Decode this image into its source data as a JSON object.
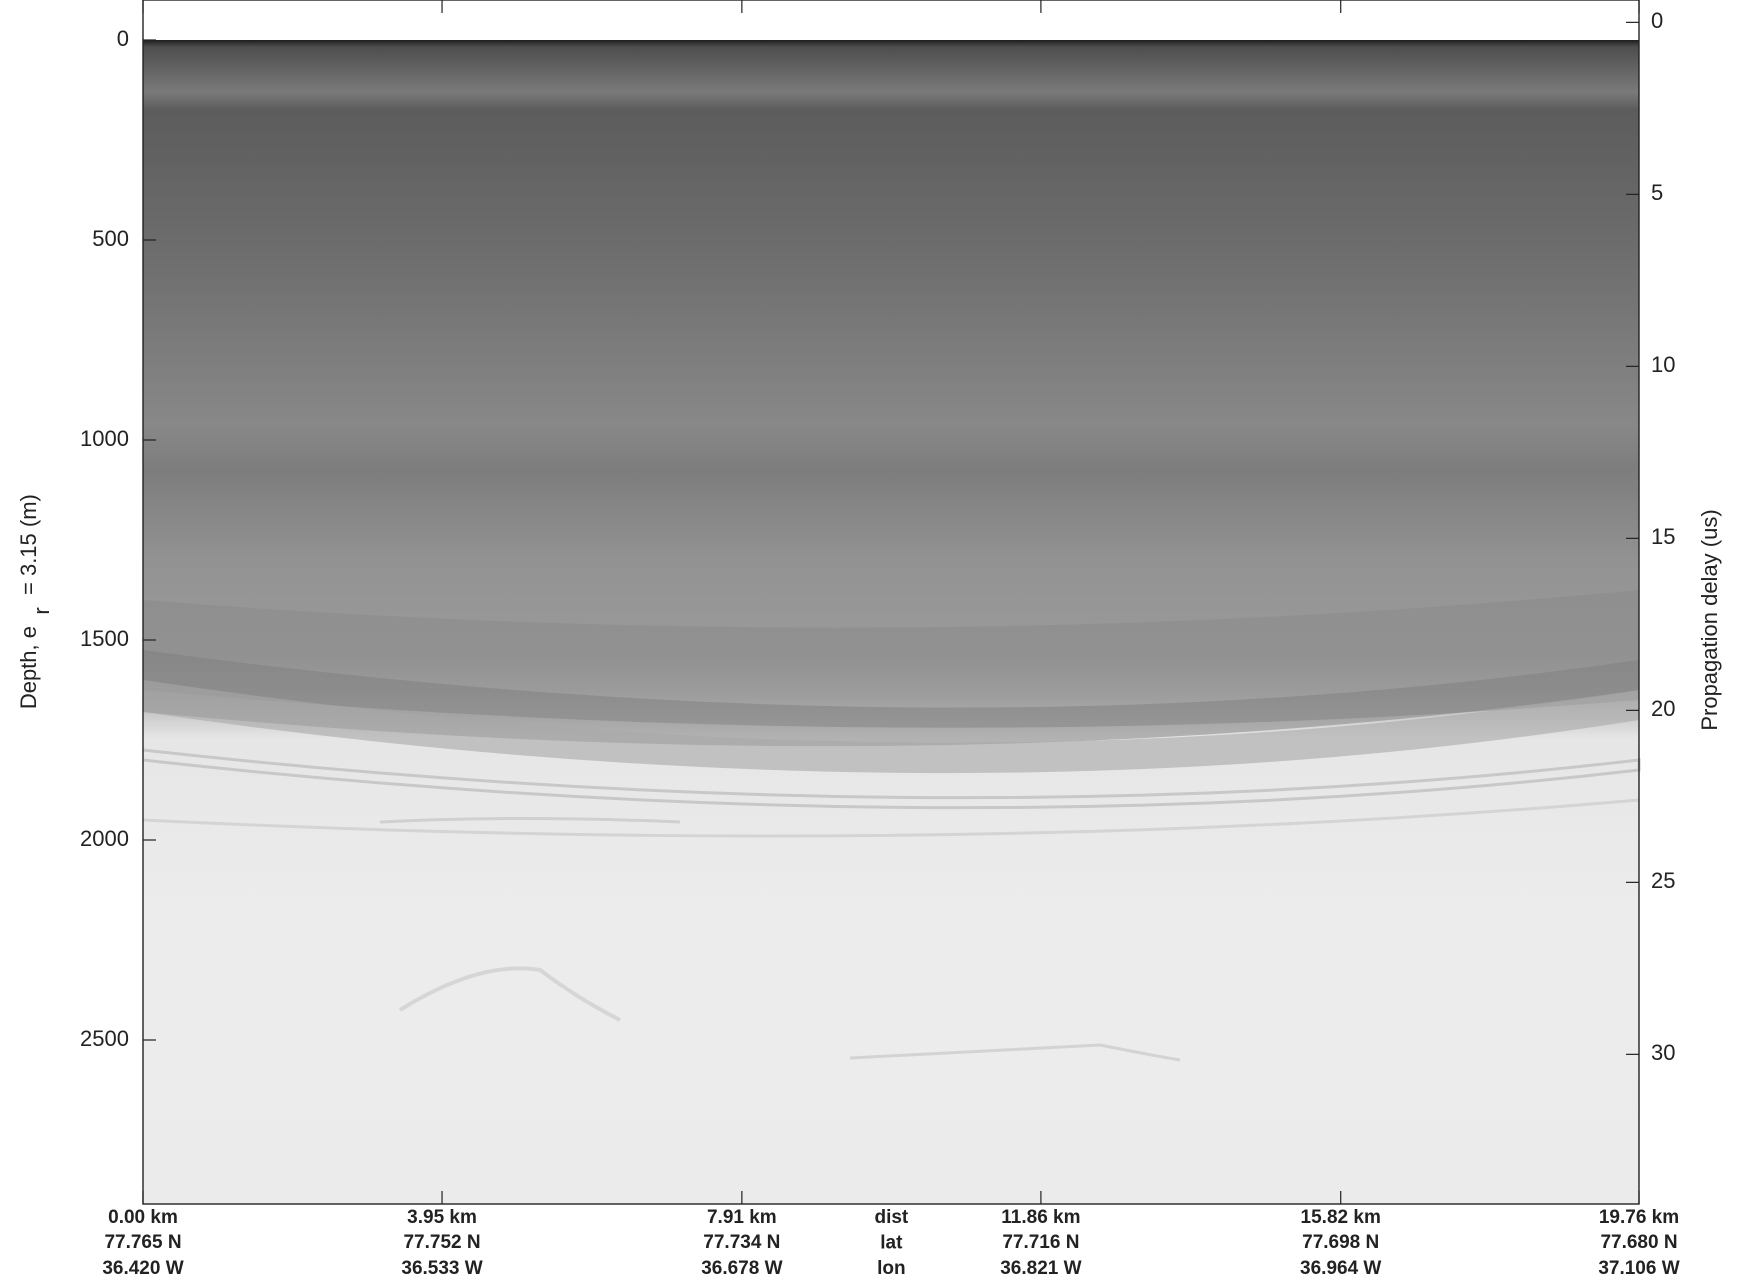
{
  "chart_data": {
    "type": "echogram",
    "y_label_parts": [
      "Depth, e",
      "r",
      "= 3.15 (m)"
    ],
    "y2_label": "Propagation delay (us)",
    "ylim": [
      -100,
      2910
    ],
    "yticks": [
      0,
      500,
      1000,
      1500,
      2000,
      2500
    ],
    "y2lim": [
      -0.65,
      34.35
    ],
    "y2ticks": [
      0,
      5,
      10,
      15,
      20,
      25,
      30
    ],
    "y_inverted": true,
    "xlim": [
      0,
      19.76
    ],
    "xticks": [
      {
        "value": 0,
        "label": "0.00 km"
      },
      {
        "value": 3.95,
        "label": "3.95 km"
      },
      {
        "value": 7.91,
        "label": "7.91 km"
      },
      {
        "value": 11.86,
        "label": "11.86 km"
      },
      {
        "value": 15.82,
        "label": "15.82 km"
      },
      {
        "value": 19.76,
        "label": "19.76 km"
      }
    ],
    "lat_labels": [
      "77.765 N",
      "77.752 N",
      "77.734 N",
      "77.716 N",
      "77.698 N",
      "77.680 N"
    ],
    "lon_labels": [
      "36.420 W",
      "36.533 W",
      "36.678 W",
      "36.821 W",
      "36.964 W",
      "37.106 W"
    ],
    "row_names": [
      "dist",
      "lat",
      "lon"
    ]
  }
}
